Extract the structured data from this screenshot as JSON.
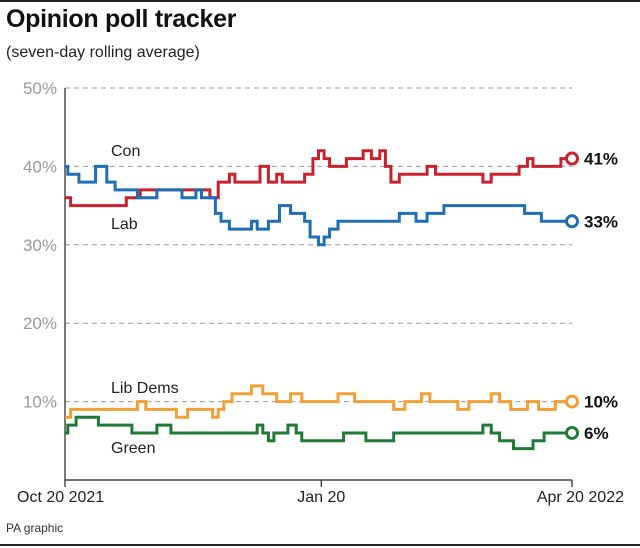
{
  "header": {
    "title": "Opinion poll tracker",
    "subtitle": "(seven-day rolling average)"
  },
  "footer": {
    "source": "PA graphic"
  },
  "chart_data": {
    "type": "line",
    "title": "Opinion poll tracker",
    "subtitle": "(seven-day rolling average)",
    "xlabel": "",
    "ylabel": "",
    "x_ticks": [
      {
        "day": 0,
        "label": "Oct 20 2021"
      },
      {
        "day": 92,
        "label": "Jan 20"
      },
      {
        "day": 182,
        "label": "Apr 20 2022"
      }
    ],
    "xlim": [
      0,
      182
    ],
    "ylim": [
      0,
      50
    ],
    "y_ticks": [
      10,
      20,
      30,
      40,
      50
    ],
    "y_tick_labels": [
      "10%",
      "20%",
      "30%",
      "40%",
      "50%"
    ],
    "grid": true,
    "series": [
      {
        "name": "Con",
        "color": "#c8232c",
        "end_label": "41%",
        "points": [
          [
            0,
            36
          ],
          [
            2,
            36
          ],
          [
            2,
            35
          ],
          [
            22,
            35
          ],
          [
            22,
            36
          ],
          [
            27,
            36
          ],
          [
            27,
            37
          ],
          [
            52,
            37
          ],
          [
            52,
            36
          ],
          [
            55,
            36
          ],
          [
            55,
            38
          ],
          [
            59,
            38
          ],
          [
            59,
            39
          ],
          [
            61,
            39
          ],
          [
            61,
            38
          ],
          [
            70,
            38
          ],
          [
            70,
            40
          ],
          [
            73,
            40
          ],
          [
            73,
            38
          ],
          [
            76,
            38
          ],
          [
            76,
            39
          ],
          [
            78,
            39
          ],
          [
            78,
            38
          ],
          [
            86,
            38
          ],
          [
            86,
            39
          ],
          [
            89,
            39
          ],
          [
            89,
            41
          ],
          [
            91,
            41
          ],
          [
            91,
            42
          ],
          [
            93,
            42
          ],
          [
            93,
            41
          ],
          [
            95,
            41
          ],
          [
            95,
            40
          ],
          [
            101,
            40
          ],
          [
            101,
            41
          ],
          [
            107,
            41
          ],
          [
            107,
            42
          ],
          [
            110,
            42
          ],
          [
            110,
            41
          ],
          [
            113,
            41
          ],
          [
            113,
            42
          ],
          [
            115,
            42
          ],
          [
            115,
            40
          ],
          [
            117,
            40
          ],
          [
            117,
            38
          ],
          [
            120,
            38
          ],
          [
            120,
            39
          ],
          [
            130,
            39
          ],
          [
            130,
            40
          ],
          [
            133,
            40
          ],
          [
            133,
            39
          ],
          [
            150,
            39
          ],
          [
            150,
            38
          ],
          [
            153,
            38
          ],
          [
            153,
            39
          ],
          [
            163,
            39
          ],
          [
            163,
            40
          ],
          [
            166,
            40
          ],
          [
            166,
            41
          ],
          [
            168,
            41
          ],
          [
            168,
            40
          ],
          [
            178,
            40
          ],
          [
            178,
            41
          ],
          [
            182,
            41
          ]
        ]
      },
      {
        "name": "Lab",
        "color": "#1f6fb4",
        "end_label": "33%",
        "points": [
          [
            0,
            40
          ],
          [
            1,
            40
          ],
          [
            1,
            39
          ],
          [
            5,
            39
          ],
          [
            5,
            38
          ],
          [
            11,
            38
          ],
          [
            11,
            40
          ],
          [
            15,
            40
          ],
          [
            15,
            38
          ],
          [
            18,
            38
          ],
          [
            18,
            37
          ],
          [
            26,
            37
          ],
          [
            26,
            36
          ],
          [
            33,
            36
          ],
          [
            33,
            37
          ],
          [
            42,
            37
          ],
          [
            42,
            36
          ],
          [
            47,
            36
          ],
          [
            47,
            37
          ],
          [
            49,
            37
          ],
          [
            49,
            36
          ],
          [
            54,
            36
          ],
          [
            54,
            34
          ],
          [
            56,
            34
          ],
          [
            56,
            33
          ],
          [
            59,
            33
          ],
          [
            59,
            32
          ],
          [
            67,
            32
          ],
          [
            67,
            33
          ],
          [
            69,
            33
          ],
          [
            69,
            32
          ],
          [
            73,
            32
          ],
          [
            73,
            33
          ],
          [
            77,
            33
          ],
          [
            77,
            35
          ],
          [
            81,
            35
          ],
          [
            81,
            34
          ],
          [
            86,
            34
          ],
          [
            86,
            33
          ],
          [
            88,
            33
          ],
          [
            88,
            31
          ],
          [
            91,
            31
          ],
          [
            91,
            30
          ],
          [
            93,
            30
          ],
          [
            93,
            31
          ],
          [
            95,
            31
          ],
          [
            95,
            32
          ],
          [
            98,
            32
          ],
          [
            98,
            33
          ],
          [
            120,
            33
          ],
          [
            120,
            34
          ],
          [
            126,
            34
          ],
          [
            126,
            33
          ],
          [
            130,
            33
          ],
          [
            130,
            34
          ],
          [
            136,
            34
          ],
          [
            136,
            35
          ],
          [
            165,
            35
          ],
          [
            165,
            34
          ],
          [
            171,
            34
          ],
          [
            171,
            33
          ],
          [
            182,
            33
          ]
        ]
      },
      {
        "name": "Lib Dems",
        "color": "#f0a037",
        "end_label": "10%",
        "points": [
          [
            0,
            8
          ],
          [
            2,
            8
          ],
          [
            2,
            9
          ],
          [
            26,
            9
          ],
          [
            26,
            10
          ],
          [
            29,
            10
          ],
          [
            29,
            9
          ],
          [
            40,
            9
          ],
          [
            40,
            8
          ],
          [
            44,
            8
          ],
          [
            44,
            9
          ],
          [
            53,
            9
          ],
          [
            53,
            8
          ],
          [
            55,
            8
          ],
          [
            55,
            9
          ],
          [
            57,
            9
          ],
          [
            57,
            10
          ],
          [
            60,
            10
          ],
          [
            60,
            11
          ],
          [
            67,
            11
          ],
          [
            67,
            12
          ],
          [
            71,
            12
          ],
          [
            71,
            11
          ],
          [
            76,
            11
          ],
          [
            76,
            10
          ],
          [
            81,
            10
          ],
          [
            81,
            11
          ],
          [
            85,
            11
          ],
          [
            85,
            10
          ],
          [
            98,
            10
          ],
          [
            98,
            11
          ],
          [
            104,
            11
          ],
          [
            104,
            10
          ],
          [
            118,
            10
          ],
          [
            118,
            9
          ],
          [
            122,
            9
          ],
          [
            122,
            10
          ],
          [
            128,
            10
          ],
          [
            128,
            11
          ],
          [
            131,
            11
          ],
          [
            131,
            10
          ],
          [
            141,
            10
          ],
          [
            141,
            9
          ],
          [
            145,
            9
          ],
          [
            145,
            10
          ],
          [
            153,
            10
          ],
          [
            153,
            11
          ],
          [
            156,
            11
          ],
          [
            156,
            10
          ],
          [
            160,
            10
          ],
          [
            160,
            9
          ],
          [
            166,
            9
          ],
          [
            166,
            10
          ],
          [
            170,
            10
          ],
          [
            170,
            9
          ],
          [
            176,
            9
          ],
          [
            176,
            10
          ],
          [
            182,
            10
          ]
        ]
      },
      {
        "name": "Green",
        "color": "#1f7a35",
        "end_label": "6%",
        "points": [
          [
            0,
            6
          ],
          [
            1,
            6
          ],
          [
            1,
            7
          ],
          [
            4,
            7
          ],
          [
            4,
            8
          ],
          [
            12,
            8
          ],
          [
            12,
            7
          ],
          [
            24,
            7
          ],
          [
            24,
            6
          ],
          [
            33,
            6
          ],
          [
            33,
            7
          ],
          [
            38,
            7
          ],
          [
            38,
            6
          ],
          [
            69,
            6
          ],
          [
            69,
            7
          ],
          [
            71,
            7
          ],
          [
            71,
            6
          ],
          [
            73,
            6
          ],
          [
            73,
            5
          ],
          [
            75,
            5
          ],
          [
            75,
            6
          ],
          [
            80,
            6
          ],
          [
            80,
            7
          ],
          [
            83,
            7
          ],
          [
            83,
            6
          ],
          [
            85,
            6
          ],
          [
            85,
            5
          ],
          [
            100,
            5
          ],
          [
            100,
            6
          ],
          [
            108,
            6
          ],
          [
            108,
            5
          ],
          [
            118,
            5
          ],
          [
            118,
            6
          ],
          [
            150,
            6
          ],
          [
            150,
            7
          ],
          [
            153,
            7
          ],
          [
            153,
            6
          ],
          [
            156,
            6
          ],
          [
            156,
            5
          ],
          [
            161,
            5
          ],
          [
            161,
            4
          ],
          [
            168,
            4
          ],
          [
            168,
            5
          ],
          [
            172,
            5
          ],
          [
            172,
            6
          ],
          [
            182,
            6
          ]
        ]
      }
    ]
  }
}
